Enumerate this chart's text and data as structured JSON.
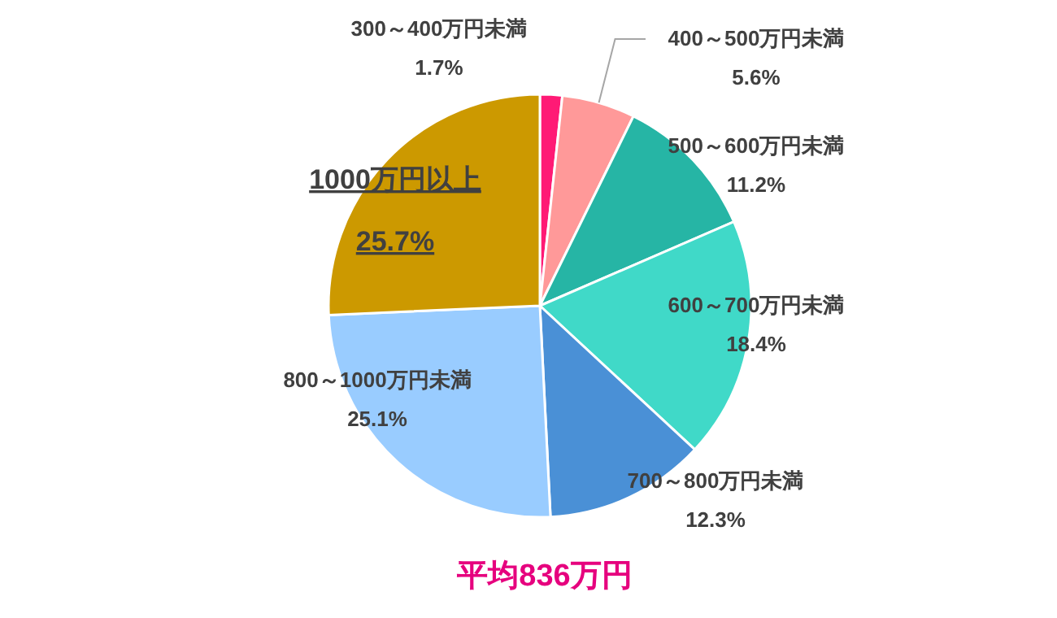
{
  "chart_data": {
    "type": "pie",
    "categories": [
      "300～400万円未満",
      "400～500万円未満",
      "500～600万円未満",
      "600～700万円未満",
      "700～800万円未満",
      "800～1000万円未満",
      "1000万円以上"
    ],
    "values": [
      1.7,
      5.6,
      11.2,
      18.4,
      12.3,
      25.1,
      25.7
    ],
    "colors": [
      "#ff1a75",
      "#ff9999",
      "#26b5a5",
      "#40d9c8",
      "#4a90d6",
      "#99ccff",
      "#cc9900"
    ],
    "value_labels": [
      "1.7%",
      "5.6%",
      "11.2%",
      "18.4%",
      "12.3%",
      "25.1%",
      "25.7%"
    ],
    "annotations": [
      "平均836万円"
    ]
  }
}
